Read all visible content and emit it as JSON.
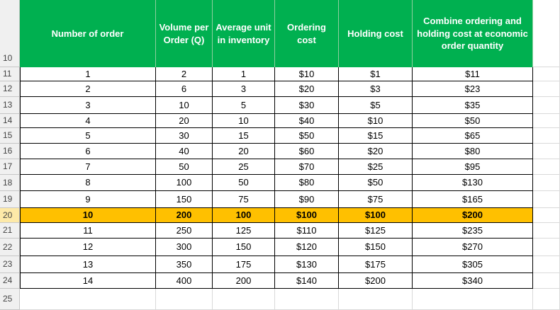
{
  "row_headers": [
    "10",
    "11",
    "12",
    "13",
    "14",
    "15",
    "16",
    "17",
    "18",
    "19",
    "20",
    "21",
    "22",
    "23",
    "24",
    "25"
  ],
  "table": {
    "header": [
      "Number of order",
      "Volume per Order (Q)",
      "Average unit in inventory",
      "Ordering cost",
      "Holding cost",
      "Combine ordering and holding cost at economic order quantity"
    ],
    "rows": [
      [
        "1",
        "2",
        "1",
        "$10",
        "$1",
        "$11"
      ],
      [
        "2",
        "6",
        "3",
        "$20",
        "$3",
        "$23"
      ],
      [
        "3",
        "10",
        "5",
        "$30",
        "$5",
        "$35"
      ],
      [
        "4",
        "20",
        "10",
        "$40",
        "$10",
        "$50"
      ],
      [
        "5",
        "30",
        "15",
        "$50",
        "$15",
        "$65"
      ],
      [
        "6",
        "40",
        "20",
        "$60",
        "$20",
        "$80"
      ],
      [
        "7",
        "50",
        "25",
        "$70",
        "$25",
        "$95"
      ],
      [
        "8",
        "100",
        "50",
        "$80",
        "$50",
        "$130"
      ],
      [
        "9",
        "150",
        "75",
        "$90",
        "$75",
        "$165"
      ],
      [
        "10",
        "200",
        "100",
        "$100",
        "$100",
        "$200"
      ],
      [
        "11",
        "250",
        "125",
        "$110",
        "$125",
        "$235"
      ],
      [
        "12",
        "300",
        "150",
        "$120",
        "$150",
        "$270"
      ],
      [
        "13",
        "350",
        "175",
        "$130",
        "$175",
        "$305"
      ],
      [
        "14",
        "400",
        "200",
        "$140",
        "$200",
        "$340"
      ]
    ]
  }
}
